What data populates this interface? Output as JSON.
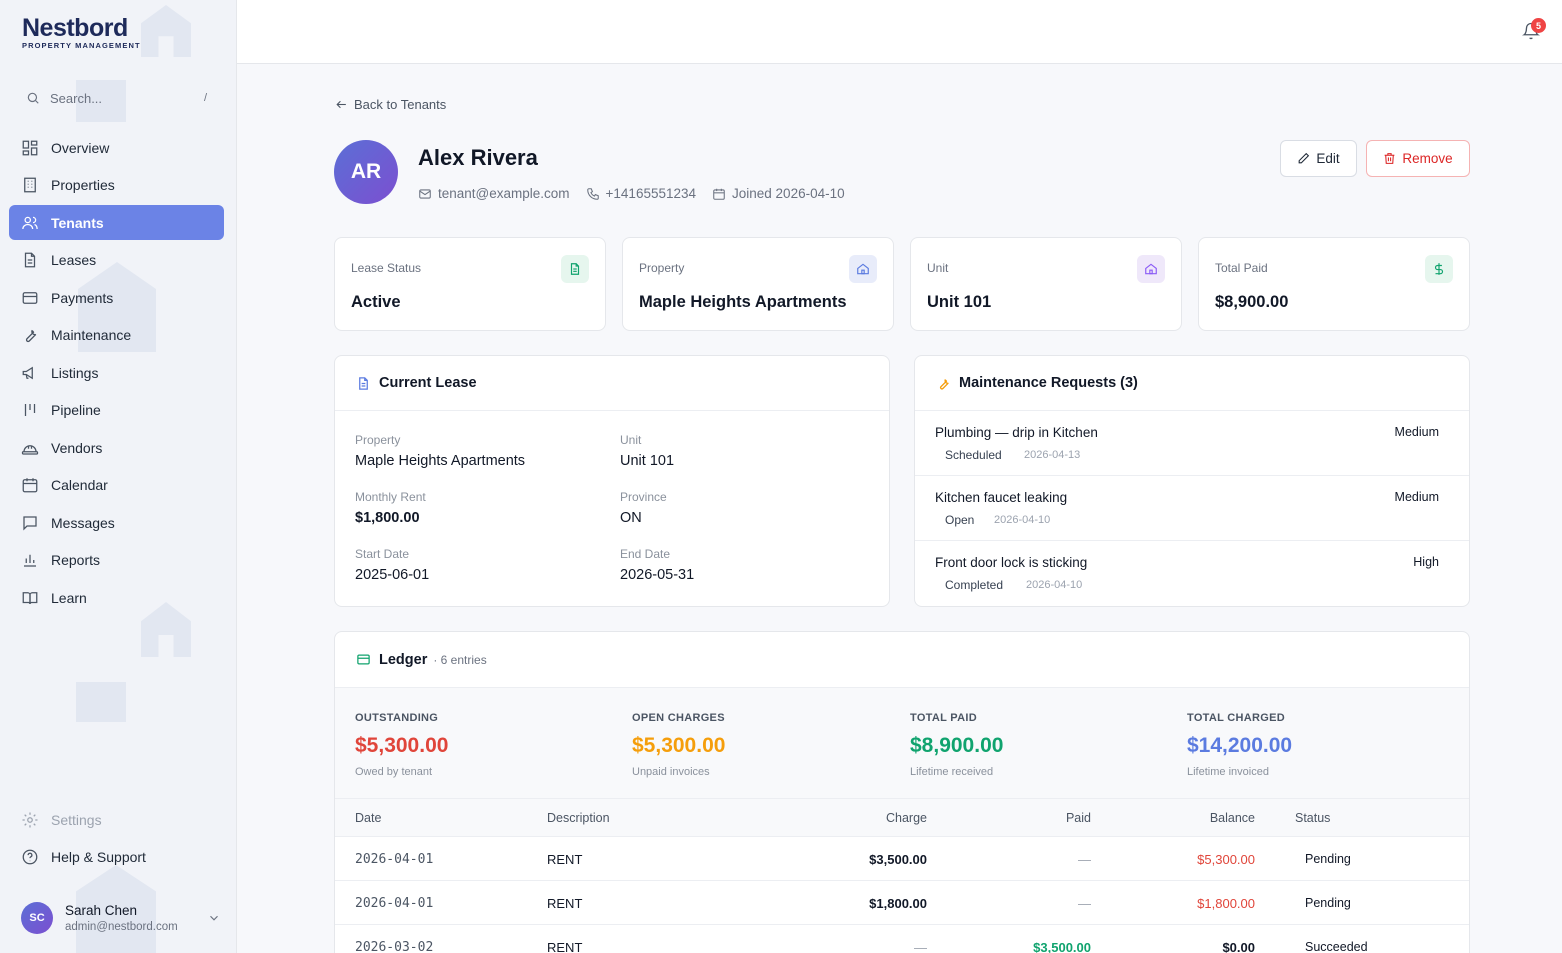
{
  "brand": {
    "name": "Nestbord",
    "tagline": "PROPERTY MANAGEMENT"
  },
  "search": {
    "placeholder": "Search...",
    "shortcut": "/"
  },
  "nav": {
    "items": [
      {
        "label": "Overview",
        "icon": "grid-icon"
      },
      {
        "label": "Properties",
        "icon": "building-icon"
      },
      {
        "label": "Tenants",
        "icon": "users-icon"
      },
      {
        "label": "Leases",
        "icon": "file-icon"
      },
      {
        "label": "Payments",
        "icon": "card-icon"
      },
      {
        "label": "Maintenance",
        "icon": "wrench-icon"
      },
      {
        "label": "Listings",
        "icon": "megaphone-icon"
      },
      {
        "label": "Pipeline",
        "icon": "pipeline-icon"
      },
      {
        "label": "Vendors",
        "icon": "hardhat-icon"
      },
      {
        "label": "Calendar",
        "icon": "calendar-icon"
      },
      {
        "label": "Messages",
        "icon": "message-icon"
      },
      {
        "label": "Reports",
        "icon": "chart-icon"
      },
      {
        "label": "Learn",
        "icon": "book-icon"
      }
    ],
    "settings": "Settings",
    "help": "Help & Support"
  },
  "user": {
    "initials": "SC",
    "name": "Sarah Chen",
    "email": "admin@nestbord.com"
  },
  "notifications": {
    "count": "5"
  },
  "back_label": "Back to Tenants",
  "tenant": {
    "initials": "AR",
    "name": "Alex Rivera",
    "email": "tenant@example.com",
    "phone": "+14165551234",
    "joined": "Joined 2026-04-10"
  },
  "actions": {
    "edit": "Edit",
    "remove": "Remove"
  },
  "stats": [
    {
      "label": "Lease Status",
      "value": "Active"
    },
    {
      "label": "Property",
      "value": "Maple Heights Apartments"
    },
    {
      "label": "Unit",
      "value": "Unit 101"
    },
    {
      "label": "Total Paid",
      "value": "$8,900.00"
    }
  ],
  "lease": {
    "title": "Current Lease",
    "property_label": "Property",
    "property": "Maple Heights Apartments",
    "unit_label": "Unit",
    "unit": "Unit 101",
    "rent_label": "Monthly Rent",
    "rent": "$1,800.00",
    "province_label": "Province",
    "province": "ON",
    "start_label": "Start Date",
    "start": "2025-06-01",
    "end_label": "End Date",
    "end": "2026-05-31"
  },
  "maintenance": {
    "title": "Maintenance Requests (3)",
    "requests": [
      {
        "title": "Plumbing — drip in Kitchen",
        "priority": "Medium",
        "status": "Scheduled",
        "date": "2026-04-13"
      },
      {
        "title": "Kitchen faucet leaking",
        "priority": "Medium",
        "status": "Open",
        "date": "2026-04-10"
      },
      {
        "title": "Front door lock is sticking",
        "priority": "High",
        "status": "Completed",
        "date": "2026-04-10"
      }
    ]
  },
  "ledger": {
    "title": "Ledger",
    "entries": "· 6 entries",
    "summary": [
      {
        "label": "OUTSTANDING",
        "value": "$5,300.00",
        "sub": "Owed by tenant",
        "color": "#e0453a"
      },
      {
        "label": "OPEN CHARGES",
        "value": "$5,300.00",
        "sub": "Unpaid invoices",
        "color": "#f59e0b"
      },
      {
        "label": "TOTAL PAID",
        "value": "$8,900.00",
        "sub": "Lifetime received",
        "color": "#10a36e"
      },
      {
        "label": "TOTAL CHARGED",
        "value": "$14,200.00",
        "sub": "Lifetime invoiced",
        "color": "#5b7be0"
      }
    ],
    "columns": [
      "Date",
      "Description",
      "Charge",
      "Paid",
      "Balance",
      "Status"
    ],
    "rows": [
      {
        "date": "2026-04-01",
        "desc": "RENT",
        "charge": "$3,500.00",
        "paid": "—",
        "balance": "$5,300.00",
        "status": "Pending"
      },
      {
        "date": "2026-04-01",
        "desc": "RENT",
        "charge": "$1,800.00",
        "paid": "—",
        "balance": "$1,800.00",
        "status": "Pending"
      },
      {
        "date": "2026-03-02",
        "desc": "RENT",
        "charge": "—",
        "paid": "$3,500.00",
        "balance": "$0.00",
        "status": "Succeeded"
      }
    ]
  }
}
